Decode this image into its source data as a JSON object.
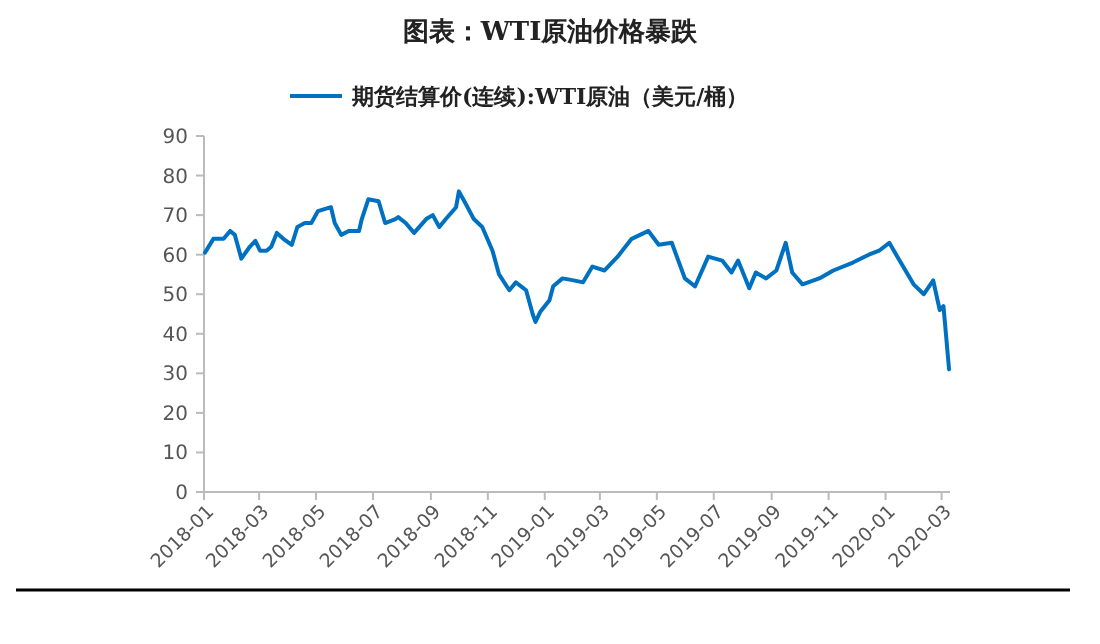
{
  "chart_data": {
    "type": "line",
    "title": "图表：WTI原油价格暴跌",
    "x": [
      "2018-01-02",
      "2018-01-11",
      "2018-01-22",
      "2018-01-29",
      "2018-02-03",
      "2018-02-10",
      "2018-02-19",
      "2018-02-25",
      "2018-03-02",
      "2018-03-09",
      "2018-03-14",
      "2018-03-20",
      "2018-03-27",
      "2018-04-05",
      "2018-04-11",
      "2018-04-19",
      "2018-04-26",
      "2018-05-03",
      "2018-05-17",
      "2018-05-21",
      "2018-05-28",
      "2018-06-05",
      "2018-06-16",
      "2018-06-19",
      "2018-06-26",
      "2018-07-07",
      "2018-07-14",
      "2018-07-25",
      "2018-07-28",
      "2018-08-05",
      "2018-08-14",
      "2018-08-27",
      "2018-09-03",
      "2018-09-10",
      "2018-09-17",
      "2018-09-28",
      "2018-10-01",
      "2018-10-08",
      "2018-10-17",
      "2018-10-26",
      "2018-11-06",
      "2018-11-13",
      "2018-11-24",
      "2018-12-01",
      "2018-12-12",
      "2018-12-19",
      "2018-12-22",
      "2018-12-27",
      "2019-01-06",
      "2019-01-10",
      "2019-01-20",
      "2019-02-01",
      "2019-02-11",
      "2019-02-21",
      "2019-03-06",
      "2019-03-20",
      "2019-04-04",
      "2019-04-22",
      "2019-05-03",
      "2019-05-17",
      "2019-05-31",
      "2019-06-11",
      "2019-06-25",
      "2019-07-10",
      "2019-07-20",
      "2019-07-27",
      "2019-08-08",
      "2019-08-15",
      "2019-08-26",
      "2019-09-06",
      "2019-09-16",
      "2019-09-23",
      "2019-10-04",
      "2019-10-22",
      "2019-11-06",
      "2019-11-27",
      "2019-12-14",
      "2019-12-25",
      "2020-01-05",
      "2020-01-16",
      "2020-01-31",
      "2020-02-11",
      "2020-02-21",
      "2020-02-28",
      "2020-03-03",
      "2020-03-09"
    ],
    "series": [
      {
        "name": "期货结算价(连续):WTI原油（美元/桶）",
        "color": "#0070c0",
        "values": [
          60.5,
          64,
          64,
          66,
          65,
          59,
          62,
          63.5,
          61,
          61,
          62,
          65.5,
          64,
          62.5,
          67,
          68,
          68,
          71,
          72,
          68,
          65,
          66,
          66,
          69,
          74,
          73.5,
          68,
          69,
          69.5,
          68,
          65.5,
          69,
          70,
          67,
          69,
          72,
          76,
          73,
          69,
          67,
          61,
          55,
          51,
          53,
          51,
          45,
          43,
          45.5,
          48.5,
          52,
          54,
          53.5,
          53,
          57,
          56,
          59.5,
          64,
          66,
          62.5,
          63,
          54,
          52,
          59.5,
          58.5,
          55.5,
          58.5,
          51.5,
          55.5,
          54,
          56,
          63,
          55.5,
          52.5,
          54,
          56,
          58,
          60,
          61,
          63,
          58.5,
          52.5,
          50,
          53.5,
          46,
          47,
          31
        ]
      }
    ],
    "xlim": [
      "2018-01-01",
      "2020-03-10"
    ],
    "xticks": [
      "2018-01",
      "2018-03",
      "2018-05",
      "2018-07",
      "2018-09",
      "2018-11",
      "2019-01",
      "2019-03",
      "2019-05",
      "2019-07",
      "2019-09",
      "2019-11",
      "2020-01",
      "2020-03"
    ],
    "ylim": [
      0,
      90
    ],
    "yticks": [
      0,
      10,
      20,
      30,
      40,
      50,
      60,
      70,
      80,
      90
    ],
    "grid": false,
    "legend": "top",
    "marker": "none",
    "line_style": "solid"
  }
}
